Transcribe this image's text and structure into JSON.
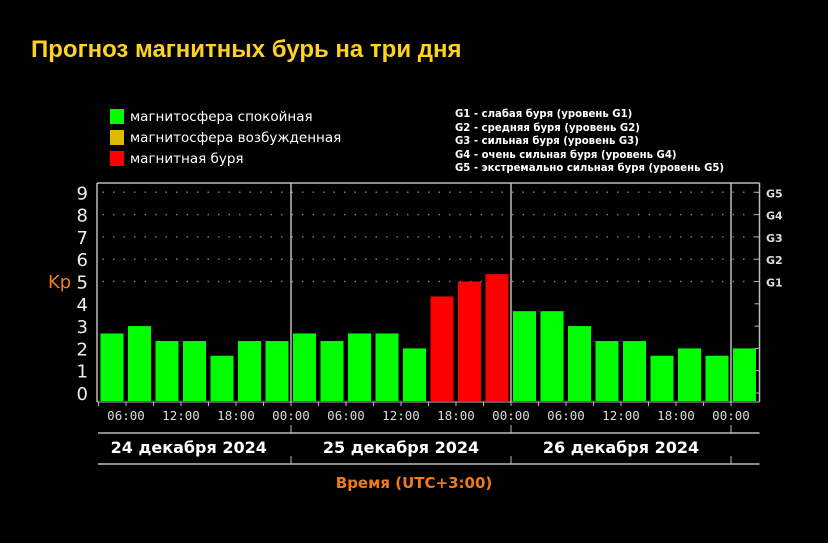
{
  "title": "Прогноз магнитных бурь на три дня",
  "legend": [
    {
      "label": "магнитосфера спокойная",
      "color": "#00ff00"
    },
    {
      "label": "магнитосфера возбужденная",
      "color": "#e0b800"
    },
    {
      "label": "магнитная буря",
      "color": "#ff0000"
    }
  ],
  "g_legend": [
    "G1 - слабая буря (уровень G1)",
    "G2 - средняя буря (уровень G2)",
    "G3 - сильная буря (уровень G3)",
    "G4 - очень сильная буря (уровень G4)",
    "G5 - экстремально сильная буря (уровень G5)"
  ],
  "chart_data": {
    "type": "bar",
    "title": "Прогноз магнитных бурь на три дня",
    "ylabel": "Kp",
    "xlabel": "Время (UTC+3:00)",
    "ylim": [
      0,
      9
    ],
    "yticks": [
      "0",
      "1",
      "2",
      "3",
      "4",
      "5",
      "6",
      "7",
      "8",
      "9"
    ],
    "g_ticks": [
      {
        "label": "G1",
        "kp": 5
      },
      {
        "label": "G2",
        "kp": 6
      },
      {
        "label": "G3",
        "kp": 7
      },
      {
        "label": "G4",
        "kp": 8
      },
      {
        "label": "G5",
        "kp": 9
      }
    ],
    "xtick_labels": [
      "06:00",
      "12:00",
      "18:00",
      "00:00",
      "06:00",
      "12:00",
      "18:00",
      "00:00",
      "06:00",
      "12:00",
      "18:00",
      "00:00"
    ],
    "days": [
      "24 декабря 2024",
      "25 декабря 2024",
      "26 декабря 2024"
    ],
    "values": [
      2.67,
      3,
      2.33,
      2.33,
      1.67,
      2.33,
      2.33,
      2.67,
      2.33,
      2.67,
      2.67,
      2,
      4.33,
      5,
      5.33,
      3.67,
      3.67,
      3,
      2.33,
      2.33,
      1.67,
      2,
      1.67,
      2
    ],
    "colors": {
      "quiet": "#00ff00",
      "active": "#e0b800",
      "storm": "#ff0000"
    },
    "storm_threshold": 4,
    "grid": "dotted"
  }
}
